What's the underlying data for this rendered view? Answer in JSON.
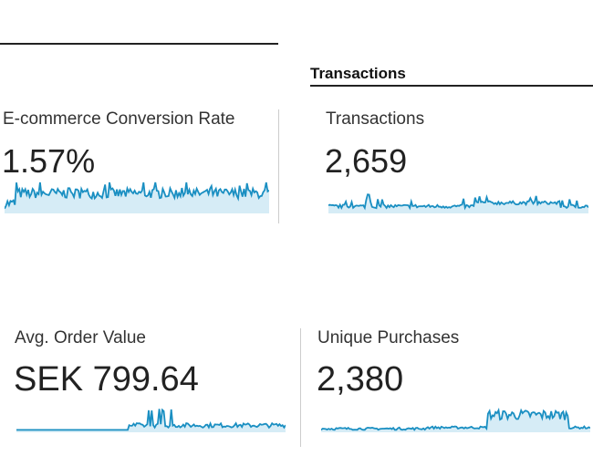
{
  "section": {
    "title": "Transactions"
  },
  "metrics": [
    {
      "label": "E-commerce Conversion Rate",
      "value": "1.57%"
    },
    {
      "label": "Transactions",
      "value": "2,659"
    },
    {
      "label": "Avg. Order Value",
      "value": "SEK 799.64"
    },
    {
      "label": "Unique Purchases",
      "value": "2,380"
    }
  ],
  "colors": {
    "sparkline": "#1a8fc2",
    "sparkline_fill": "#d6ecf6"
  }
}
